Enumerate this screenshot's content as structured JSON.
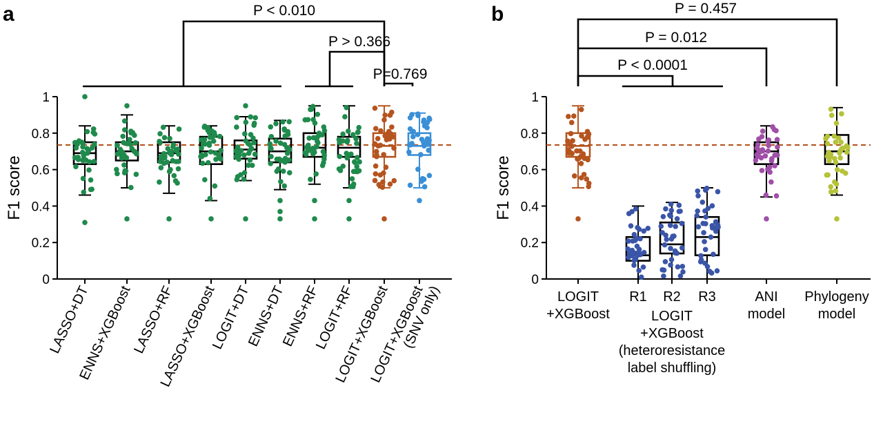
{
  "chart_data": [
    {
      "panel": "a",
      "type": "box",
      "ylabel": "F1 score",
      "ylim": [
        0,
        1
      ],
      "yticks": [
        "0",
        "0.2",
        "0.4",
        "0.6",
        "0.8",
        "1"
      ],
      "reference_line": {
        "y": 0.735,
        "style": "dashed",
        "color": "#b5541f"
      },
      "categories": [
        "LASSO+DT",
        "ENNS+XGBoost",
        "LASSO+RF",
        "LASSO+XGBoost",
        "LOGIT+DT",
        "ENNS+DT",
        "ENNS+RF",
        "LOGIT+RF",
        "LOGIT+XGBoost",
        "LOGIT+XGBoost\n(SNV only)"
      ],
      "box_colors": [
        "#000000",
        "#000000",
        "#000000",
        "#000000",
        "#000000",
        "#000000",
        "#000000",
        "#000000",
        "#b5541f",
        "#3a8fd6"
      ],
      "point_colors": [
        "#1f8a4c",
        "#1f8a4c",
        "#1f8a4c",
        "#1f8a4c",
        "#1f8a4c",
        "#1f8a4c",
        "#1f8a4c",
        "#1f8a4c",
        "#b5541f",
        "#3a8fd6"
      ],
      "boxes": [
        {
          "min": 0.46,
          "q1": 0.63,
          "median": 0.69,
          "q3": 0.75,
          "max": 0.84,
          "outliers": [
            0.31,
            1.0
          ]
        },
        {
          "min": 0.5,
          "q1": 0.65,
          "median": 0.7,
          "q3": 0.75,
          "max": 0.9,
          "outliers": [
            0.33,
            0.95
          ]
        },
        {
          "min": 0.47,
          "q1": 0.64,
          "median": 0.69,
          "q3": 0.75,
          "max": 0.84,
          "outliers": [
            0.33
          ]
        },
        {
          "min": 0.43,
          "q1": 0.63,
          "median": 0.7,
          "q3": 0.78,
          "max": 0.84,
          "outliers": [
            0.33
          ]
        },
        {
          "min": 0.54,
          "q1": 0.66,
          "median": 0.71,
          "q3": 0.76,
          "max": 0.89,
          "outliers": [
            0.33,
            0.95
          ]
        },
        {
          "min": 0.49,
          "q1": 0.64,
          "median": 0.7,
          "q3": 0.77,
          "max": 0.87,
          "outliers": [
            0.33,
            0.37,
            0.43
          ]
        },
        {
          "min": 0.52,
          "q1": 0.67,
          "median": 0.72,
          "q3": 0.8,
          "max": 0.95,
          "outliers": [
            0.33,
            0.43
          ]
        },
        {
          "min": 0.5,
          "q1": 0.67,
          "median": 0.72,
          "q3": 0.78,
          "max": 0.95,
          "outliers": [
            0.33,
            0.43
          ]
        },
        {
          "min": 0.5,
          "q1": 0.67,
          "median": 0.73,
          "q3": 0.8,
          "max": 0.95,
          "outliers": [
            0.33
          ]
        },
        {
          "min": 0.5,
          "q1": 0.68,
          "median": 0.73,
          "q3": 0.8,
          "max": 0.91,
          "outliers": [
            0.43
          ]
        }
      ],
      "comparisons": [
        {
          "label": "P < 0.010",
          "groups": [
            "LASSO+DT … ENNS+DT",
            "LOGIT+XGBoost"
          ]
        },
        {
          "label": "P > 0.366",
          "groups": [
            "ENNS+RF, LOGIT+RF",
            "LOGIT+XGBoost"
          ]
        },
        {
          "label": "P=0.769",
          "groups": [
            "LOGIT+XGBoost",
            "LOGIT+XGBoost (SNV only)"
          ]
        }
      ]
    },
    {
      "panel": "b",
      "type": "box",
      "ylabel": "F1 score",
      "ylim": [
        0,
        1
      ],
      "yticks": [
        "0",
        "0.2",
        "0.4",
        "0.6",
        "0.8",
        "1"
      ],
      "reference_line": {
        "y": 0.735,
        "style": "dashed",
        "color": "#b5541f"
      },
      "categories": [
        "LOGIT\n+XGBoost",
        "R1",
        "R2",
        "R3",
        "ANI\nmodel",
        "Phylogeny\nmodel"
      ],
      "group_label": "LOGIT\n+XGBoost\n(heteroresistance\nlabel shuffling)",
      "box_colors": [
        "#b5541f",
        "#000000",
        "#000000",
        "#000000",
        "#000000",
        "#000000"
      ],
      "point_colors": [
        "#b5541f",
        "#3a55a8",
        "#3a55a8",
        "#3a55a8",
        "#a04fa8",
        "#b5c23a"
      ],
      "boxes": [
        {
          "min": 0.5,
          "q1": 0.67,
          "median": 0.73,
          "q3": 0.8,
          "max": 0.95,
          "outliers": [
            0.33
          ]
        },
        {
          "min": 0.0,
          "q1": 0.1,
          "median": 0.13,
          "q3": 0.23,
          "max": 0.4,
          "outliers": []
        },
        {
          "min": 0.0,
          "q1": 0.14,
          "median": 0.19,
          "q3": 0.31,
          "max": 0.42,
          "outliers": []
        },
        {
          "min": 0.0,
          "q1": 0.13,
          "median": 0.23,
          "q3": 0.34,
          "max": 0.5,
          "outliers": []
        },
        {
          "min": 0.45,
          "q1": 0.63,
          "median": 0.7,
          "q3": 0.75,
          "max": 0.84,
          "outliers": [
            0.33
          ]
        },
        {
          "min": 0.46,
          "q1": 0.63,
          "median": 0.7,
          "q3": 0.79,
          "max": 0.94,
          "outliers": [
            0.33
          ]
        }
      ],
      "comparisons": [
        {
          "label": "P = 0.457",
          "groups": [
            "LOGIT+XGBoost",
            "Phylogeny model"
          ]
        },
        {
          "label": "P = 0.012",
          "groups": [
            "LOGIT+XGBoost",
            "ANI model"
          ]
        },
        {
          "label": "P < 0.0001",
          "groups": [
            "LOGIT+XGBoost",
            "R1–R3"
          ]
        }
      ]
    }
  ]
}
